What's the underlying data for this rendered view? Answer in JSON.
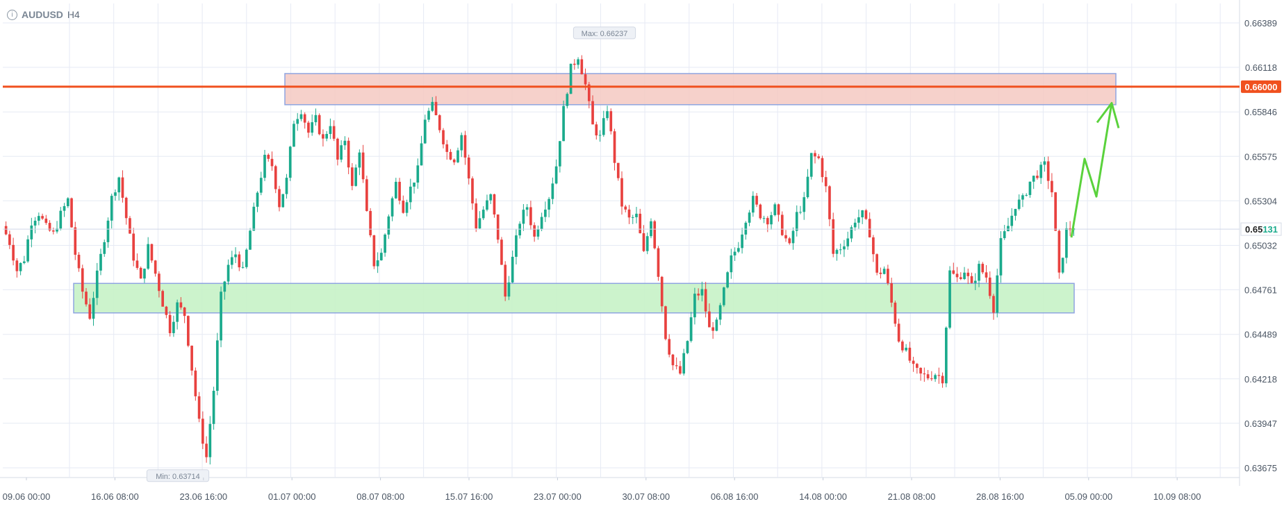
{
  "header": {
    "symbol": "AUDUSD",
    "timeframe": "H4",
    "info_icon": "info-circle-icon"
  },
  "colors": {
    "up": "#1aaa8c",
    "down": "#e8413f",
    "resistance_line": "#f0501e",
    "resistance_zone": "#f5c9c2",
    "support_zone": "#c6f2c6",
    "zone_border": "#8ea4e0",
    "projection": "#5ad23c",
    "grid": "#e6eaf4",
    "axis_text": "#4a5563"
  },
  "chart_data": {
    "type": "candlestick",
    "title": "",
    "symbol": "AUDUSD",
    "timeframe": "H4",
    "ylim": [
      0.6357,
      0.6649
    ],
    "y_ticks": [
      "0.66389",
      "0.66118",
      "0.65846",
      "0.65575",
      "0.65304",
      "0.65032",
      "0.64761",
      "0.64489",
      "0.64218",
      "0.63947",
      "0.63675"
    ],
    "x_ticks": [
      "09.06 00:00",
      "16.06 08:00",
      "23.06 16:00",
      "01.07 00:00",
      "08.07 08:00",
      "15.07 16:00",
      "23.07 00:00",
      "30.07 08:00",
      "06.08 16:00",
      "14.08 00:00",
      "21.08 08:00",
      "28.08 16:00",
      "05.09 00:00",
      "10.09 08:00"
    ],
    "current_price": {
      "text": "0.65131",
      "main": "0.65",
      "highlight": "131",
      "value": 0.65131
    },
    "resistance_level": {
      "text": "0.66000",
      "value": 0.66
    },
    "max_label": {
      "text": "Max: 0.66237",
      "value": 0.66237
    },
    "min_label": {
      "text": "Min: 0.63714",
      "value": 0.63714
    },
    "resistance_zone": {
      "from": 0.6589,
      "to": 0.6608
    },
    "support_zone": {
      "from": 0.6462,
      "to": 0.648
    },
    "price_path": [
      0.6515,
      0.6505,
      0.6488,
      0.6495,
      0.6518,
      0.6523,
      0.6514,
      0.651,
      0.6522,
      0.6531,
      0.6498,
      0.6475,
      0.646,
      0.6485,
      0.6508,
      0.6532,
      0.6545,
      0.652,
      0.6496,
      0.6481,
      0.6502,
      0.6486,
      0.6468,
      0.6452,
      0.6467,
      0.6461,
      0.6428,
      0.6395,
      0.6374,
      0.6415,
      0.6472,
      0.6491,
      0.6498,
      0.6487,
      0.6512,
      0.6536,
      0.6556,
      0.6552,
      0.6528,
      0.6543,
      0.6579,
      0.6586,
      0.6572,
      0.658,
      0.6567,
      0.6578,
      0.6555,
      0.6568,
      0.6538,
      0.6562,
      0.6522,
      0.6492,
      0.6498,
      0.6522,
      0.6541,
      0.6526,
      0.6538,
      0.6549,
      0.6581,
      0.6588,
      0.6575,
      0.656,
      0.6556,
      0.6571,
      0.6543,
      0.6515,
      0.6525,
      0.6533,
      0.6508,
      0.6472,
      0.6495,
      0.6518,
      0.6527,
      0.6508,
      0.6523,
      0.6533,
      0.6552,
      0.6586,
      0.6611,
      0.6619,
      0.6601,
      0.6576,
      0.6569,
      0.6587,
      0.6555,
      0.6528,
      0.6519,
      0.6521,
      0.6498,
      0.652,
      0.6486,
      0.6448,
      0.643,
      0.6425,
      0.6445,
      0.6472,
      0.6475,
      0.6452,
      0.6455,
      0.6475,
      0.6495,
      0.6504,
      0.652,
      0.6531,
      0.6522,
      0.6519,
      0.6526,
      0.6512,
      0.6502,
      0.6522,
      0.653,
      0.6558,
      0.6556,
      0.6538,
      0.6498,
      0.6502,
      0.6508,
      0.6519,
      0.6522,
      0.6511,
      0.6485,
      0.6489,
      0.6468,
      0.6446,
      0.6438,
      0.6428,
      0.6424,
      0.6423,
      0.6425,
      0.6422,
      0.6487,
      0.6483,
      0.6488,
      0.6478,
      0.649,
      0.6484,
      0.6465,
      0.6505,
      0.6515,
      0.6528,
      0.6531,
      0.6542,
      0.6547,
      0.6552,
      0.6536,
      0.6484,
      0.6512,
      0.6515
    ],
    "projection_path": [
      0.6508,
      0.6556,
      0.6533,
      0.659
    ]
  }
}
